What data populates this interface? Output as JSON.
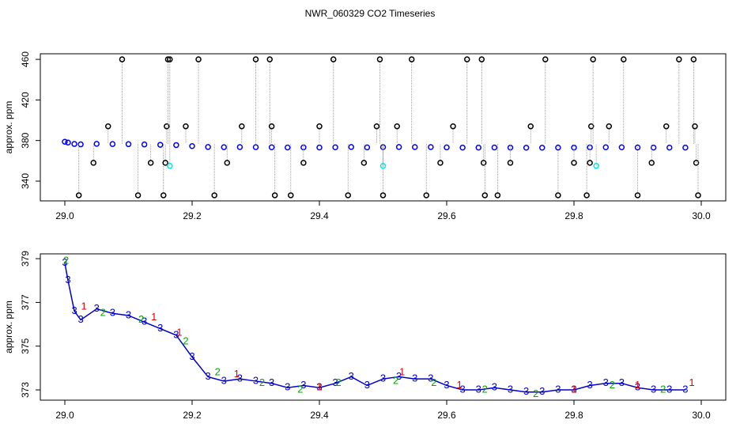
{
  "chart_data": [
    {
      "type": "scatter",
      "title": "NWR_060329  CO2 Timeseries",
      "y_label": "approx. ppm",
      "xlim": [
        28.9615,
        30.0385
      ],
      "ylim": [
        320.5,
        465.5
      ],
      "xticks": [
        {
          "value": 29,
          "label": "29.0"
        },
        29.2,
        29.4,
        29.6,
        29.8,
        {
          "value": 30,
          "label": "30.0"
        }
      ],
      "yticks": [
        340,
        380,
        420,
        460
      ],
      "spikes": true,
      "series": [
        {
          "color": "#0000ff",
          "x": [
            29.0,
            29.005,
            29.015,
            29.025,
            29.05,
            29.075,
            29.1,
            29.125,
            29.15,
            29.175,
            29.2,
            29.225,
            29.25,
            29.275,
            29.3,
            29.325,
            29.35,
            29.375,
            29.4,
            29.425,
            29.45,
            29.475,
            29.5,
            29.525,
            29.55,
            29.575,
            29.6,
            29.625,
            29.65,
            29.675,
            29.7,
            29.725,
            29.75,
            29.775,
            29.8,
            29.825,
            29.85,
            29.875,
            29.9,
            29.925,
            29.95,
            29.975
          ],
          "values": [
            378.8,
            378,
            376.6,
            376.2,
            376.7,
            376.5,
            376.4,
            376.1,
            375.8,
            375.5,
            374.5,
            373.6,
            373.4,
            373.5,
            373.4,
            373.3,
            373.1,
            373.2,
            373.1,
            373.3,
            373.6,
            373.2,
            373.5,
            373.6,
            373.5,
            373.5,
            373.2,
            373,
            373,
            373.1,
            373,
            372.9,
            372.9,
            373,
            373,
            373.2,
            373.3,
            373.3,
            373.1,
            373,
            373,
            373
          ]
        },
        {
          "color": "#000000",
          "x": [
            29.022,
            29.045,
            29.068,
            29.09,
            29.115,
            29.135,
            29.155,
            29.158,
            29.16,
            29.162,
            29.165,
            29.19,
            29.21,
            29.235,
            29.255,
            29.278,
            29.3,
            29.322,
            29.325,
            29.33,
            29.355,
            29.375,
            29.4,
            29.422,
            29.445,
            29.47,
            29.49,
            29.495,
            29.5,
            29.522,
            29.545,
            29.568,
            29.59,
            29.61,
            29.632,
            29.655,
            29.658,
            29.66,
            29.68,
            29.7,
            29.732,
            29.755,
            29.775,
            29.8,
            29.82,
            29.825,
            29.827,
            29.83,
            29.855,
            29.878,
            29.9,
            29.922,
            29.945,
            29.965,
            29.988,
            29.99,
            29.992,
            29.995
          ],
          "values": [
            326,
            358,
            394,
            460,
            326,
            358,
            326,
            358,
            394,
            460,
            460,
            394,
            460,
            326,
            358,
            394,
            460,
            460,
            394,
            326,
            326,
            358,
            394,
            460,
            326,
            358,
            394,
            460,
            326,
            394,
            460,
            326,
            358,
            394,
            460,
            460,
            358,
            326,
            326,
            358,
            394,
            460,
            326,
            358,
            326,
            358,
            394,
            460,
            394,
            460,
            326,
            358,
            394,
            460,
            460,
            394,
            358,
            326
          ]
        },
        {
          "color": "#00e5e5",
          "x": [
            29.165,
            29.5,
            29.835
          ],
          "values": [
            355,
            355,
            355
          ]
        }
      ]
    },
    {
      "type": "glyph",
      "y_label": "approx. ppm",
      "xlim": [
        28.9615,
        30.0385
      ],
      "ylim": [
        372.53,
        379.22
      ],
      "xticks": [
        {
          "value": 29,
          "label": "29.0"
        },
        29.2,
        29.4,
        29.6,
        29.8,
        {
          "value": 30,
          "label": "30.0"
        }
      ],
      "yticks": [
        373,
        375,
        377,
        379
      ],
      "series": [
        {
          "color": "#0000cc",
          "marker": "3",
          "line": true,
          "x": [
            29.0,
            29.005,
            29.015,
            29.025,
            29.05,
            29.075,
            29.1,
            29.125,
            29.15,
            29.175,
            29.2,
            29.225,
            29.25,
            29.275,
            29.3,
            29.325,
            29.35,
            29.375,
            29.4,
            29.425,
            29.45,
            29.475,
            29.5,
            29.525,
            29.55,
            29.575,
            29.6,
            29.625,
            29.65,
            29.675,
            29.7,
            29.725,
            29.75,
            29.775,
            29.8,
            29.825,
            29.85,
            29.875,
            29.9,
            29.925,
            29.95,
            29.975
          ],
          "values": [
            378.8,
            378,
            376.6,
            376.2,
            376.7,
            376.5,
            376.4,
            376.1,
            375.8,
            375.5,
            374.5,
            373.6,
            373.4,
            373.5,
            373.4,
            373.3,
            373.1,
            373.2,
            373.1,
            373.3,
            373.6,
            373.2,
            373.5,
            373.6,
            373.5,
            373.5,
            373.2,
            373,
            373,
            373.1,
            373,
            372.9,
            372.9,
            373,
            373,
            373.2,
            373.3,
            373.3,
            373.1,
            373,
            373,
            373
          ]
        },
        {
          "color": "#00aa00",
          "marker": "2",
          "line": false,
          "x": [
            29.002,
            29.06,
            29.12,
            29.19,
            29.24,
            29.31,
            29.37,
            29.43,
            29.52,
            29.58,
            29.66,
            29.74,
            29.86,
            29.94
          ],
          "values": [
            378.9,
            376.5,
            376.2,
            375.2,
            373.8,
            373.3,
            373,
            373.3,
            373.4,
            373.3,
            373,
            372.8,
            373.2,
            373
          ]
        },
        {
          "color": "#dd0000",
          "marker": "1",
          "line": false,
          "x": [
            29.03,
            29.14,
            29.18,
            29.27,
            29.4,
            29.53,
            29.62,
            29.8,
            29.9,
            29.985
          ],
          "values": [
            376.8,
            376.3,
            375.6,
            373.7,
            373.1,
            373.8,
            373.2,
            373,
            373.2,
            373.3
          ]
        }
      ]
    }
  ]
}
